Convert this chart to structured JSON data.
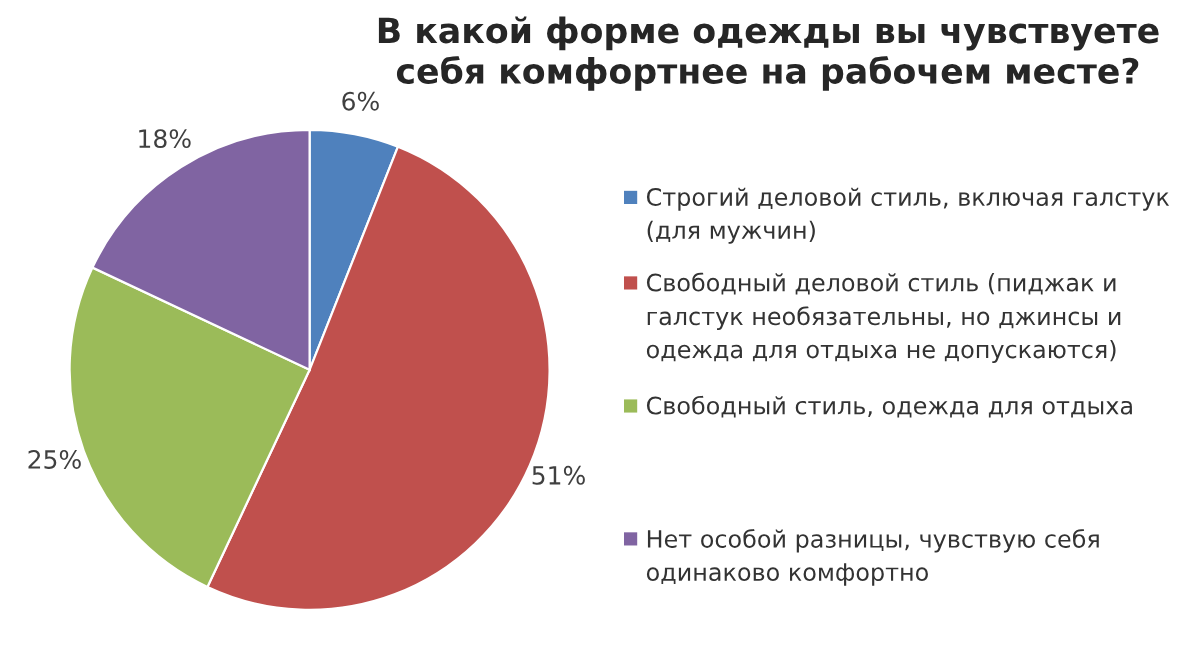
{
  "chart_data": {
    "type": "pie",
    "title": "В какой форме одежды вы чувствуете себя комфортнее на рабочем месте?",
    "categories": [
      "Строгий деловой стиль, включая галстук (для мужчин)",
      "Свободный деловой стиль (пиджак и галстук необязательны, но джинсы и одежда для отдыха не допускаются)",
      "Свободный стиль, одежда для отдыха",
      "Нет особой разницы, чувствую себя одинаково комфортно"
    ],
    "values": [
      6,
      51,
      25,
      18
    ],
    "colors": [
      "#4f81bd",
      "#c0504d",
      "#9bbb59",
      "#8064a2"
    ],
    "value_labels": [
      "6%",
      "51%",
      "25%",
      "18%"
    ],
    "legend": "right"
  }
}
